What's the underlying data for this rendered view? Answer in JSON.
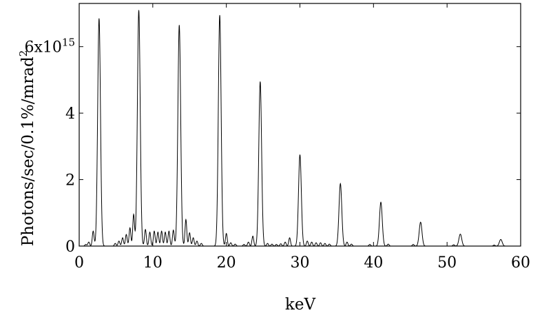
{
  "chart_data": {
    "type": "line",
    "xlabel": "keV",
    "ylabel": "Photons/sec/0.1%/mrad²",
    "xlim": [
      0,
      60
    ],
    "ylim": [
      0,
      7.3
    ],
    "x_ticks": [
      0,
      10,
      20,
      30,
      40,
      50,
      60
    ],
    "x_tick_labels": [
      "0",
      "10",
      "20",
      "30",
      "40",
      "50",
      "60"
    ],
    "y_ticks": [
      0,
      2,
      4,
      6
    ],
    "y_tick_labels": [
      "0",
      "2",
      "4",
      "6x10¹⁵"
    ],
    "y_unit_multiplier": "1e15",
    "grid": false,
    "legend": "none",
    "line_color": "#000000",
    "harmonic_peaks": [
      {
        "x": 2.7,
        "y": 6.85
      },
      {
        "x": 8.1,
        "y": 7.1
      },
      {
        "x": 13.6,
        "y": 6.65
      },
      {
        "x": 19.1,
        "y": 6.95
      },
      {
        "x": 24.6,
        "y": 4.95
      },
      {
        "x": 30.0,
        "y": 2.75
      },
      {
        "x": 35.5,
        "y": 1.88
      },
      {
        "x": 41.0,
        "y": 1.32
      },
      {
        "x": 46.4,
        "y": 0.72
      },
      {
        "x": 51.8,
        "y": 0.36
      },
      {
        "x": 57.3,
        "y": 0.2
      }
    ],
    "minor_peaks": [
      {
        "x": 0.9,
        "y": 0.05
      },
      {
        "x": 1.3,
        "y": 0.12
      },
      {
        "x": 1.9,
        "y": 0.45
      },
      {
        "x": 4.9,
        "y": 0.08
      },
      {
        "x": 5.4,
        "y": 0.15
      },
      {
        "x": 5.9,
        "y": 0.25
      },
      {
        "x": 6.4,
        "y": 0.35
      },
      {
        "x": 6.9,
        "y": 0.55
      },
      {
        "x": 7.4,
        "y": 0.95
      },
      {
        "x": 9.0,
        "y": 0.5
      },
      {
        "x": 9.6,
        "y": 0.42
      },
      {
        "x": 10.2,
        "y": 0.45
      },
      {
        "x": 10.7,
        "y": 0.42
      },
      {
        "x": 11.2,
        "y": 0.45
      },
      {
        "x": 11.7,
        "y": 0.42
      },
      {
        "x": 12.2,
        "y": 0.45
      },
      {
        "x": 12.8,
        "y": 0.48
      },
      {
        "x": 14.5,
        "y": 0.8
      },
      {
        "x": 15.0,
        "y": 0.4
      },
      {
        "x": 15.5,
        "y": 0.25
      },
      {
        "x": 16.0,
        "y": 0.15
      },
      {
        "x": 16.6,
        "y": 0.08
      },
      {
        "x": 20.0,
        "y": 0.38
      },
      {
        "x": 20.6,
        "y": 0.1
      },
      {
        "x": 21.2,
        "y": 0.06
      },
      {
        "x": 22.4,
        "y": 0.05
      },
      {
        "x": 23.0,
        "y": 0.12
      },
      {
        "x": 23.6,
        "y": 0.3
      },
      {
        "x": 25.6,
        "y": 0.08
      },
      {
        "x": 26.2,
        "y": 0.06
      },
      {
        "x": 26.8,
        "y": 0.05
      },
      {
        "x": 27.4,
        "y": 0.07
      },
      {
        "x": 28.0,
        "y": 0.12
      },
      {
        "x": 28.6,
        "y": 0.25
      },
      {
        "x": 31.0,
        "y": 0.15
      },
      {
        "x": 31.6,
        "y": 0.12
      },
      {
        "x": 32.2,
        "y": 0.1
      },
      {
        "x": 32.8,
        "y": 0.1
      },
      {
        "x": 33.4,
        "y": 0.08
      },
      {
        "x": 34.0,
        "y": 0.06
      },
      {
        "x": 36.4,
        "y": 0.12
      },
      {
        "x": 37.0,
        "y": 0.06
      },
      {
        "x": 39.5,
        "y": 0.05
      },
      {
        "x": 42.0,
        "y": 0.06
      },
      {
        "x": 45.4,
        "y": 0.05
      },
      {
        "x": 50.9,
        "y": 0.04
      },
      {
        "x": 56.4,
        "y": 0.03
      }
    ]
  }
}
